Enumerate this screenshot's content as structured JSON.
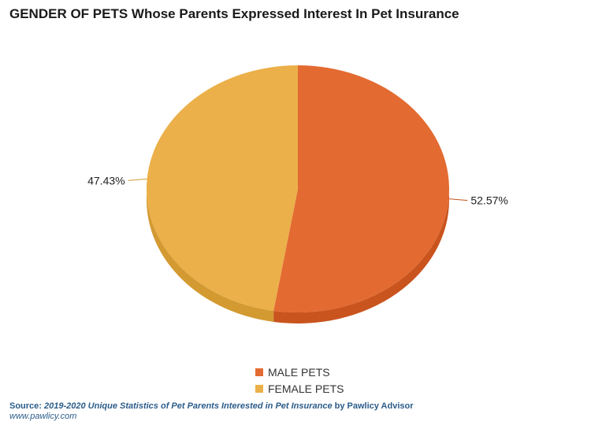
{
  "colors": {
    "male": "#e36b32",
    "male_side": "#c9541e",
    "female": "#ebb04a",
    "female_side": "#d39a32"
  },
  "chart_data": {
    "type": "pie",
    "title": "GENDER OF PETS Whose Parents Expressed Interest In Pet Insurance",
    "categories": [
      "MALE PETS",
      "FEMALE PETS"
    ],
    "values": [
      52.57,
      47.43
    ],
    "data_labels": [
      "52.57%",
      "47.43%"
    ],
    "legend": "bottom-center"
  },
  "footer": {
    "source_prefix": "Source: ",
    "source_title": "2019-2020 Unique Statistics of Pet Parents Interested in Pet Insurance",
    "source_suffix": " by Pawlicy Advisor",
    "url": "www.pawlicy.com"
  }
}
